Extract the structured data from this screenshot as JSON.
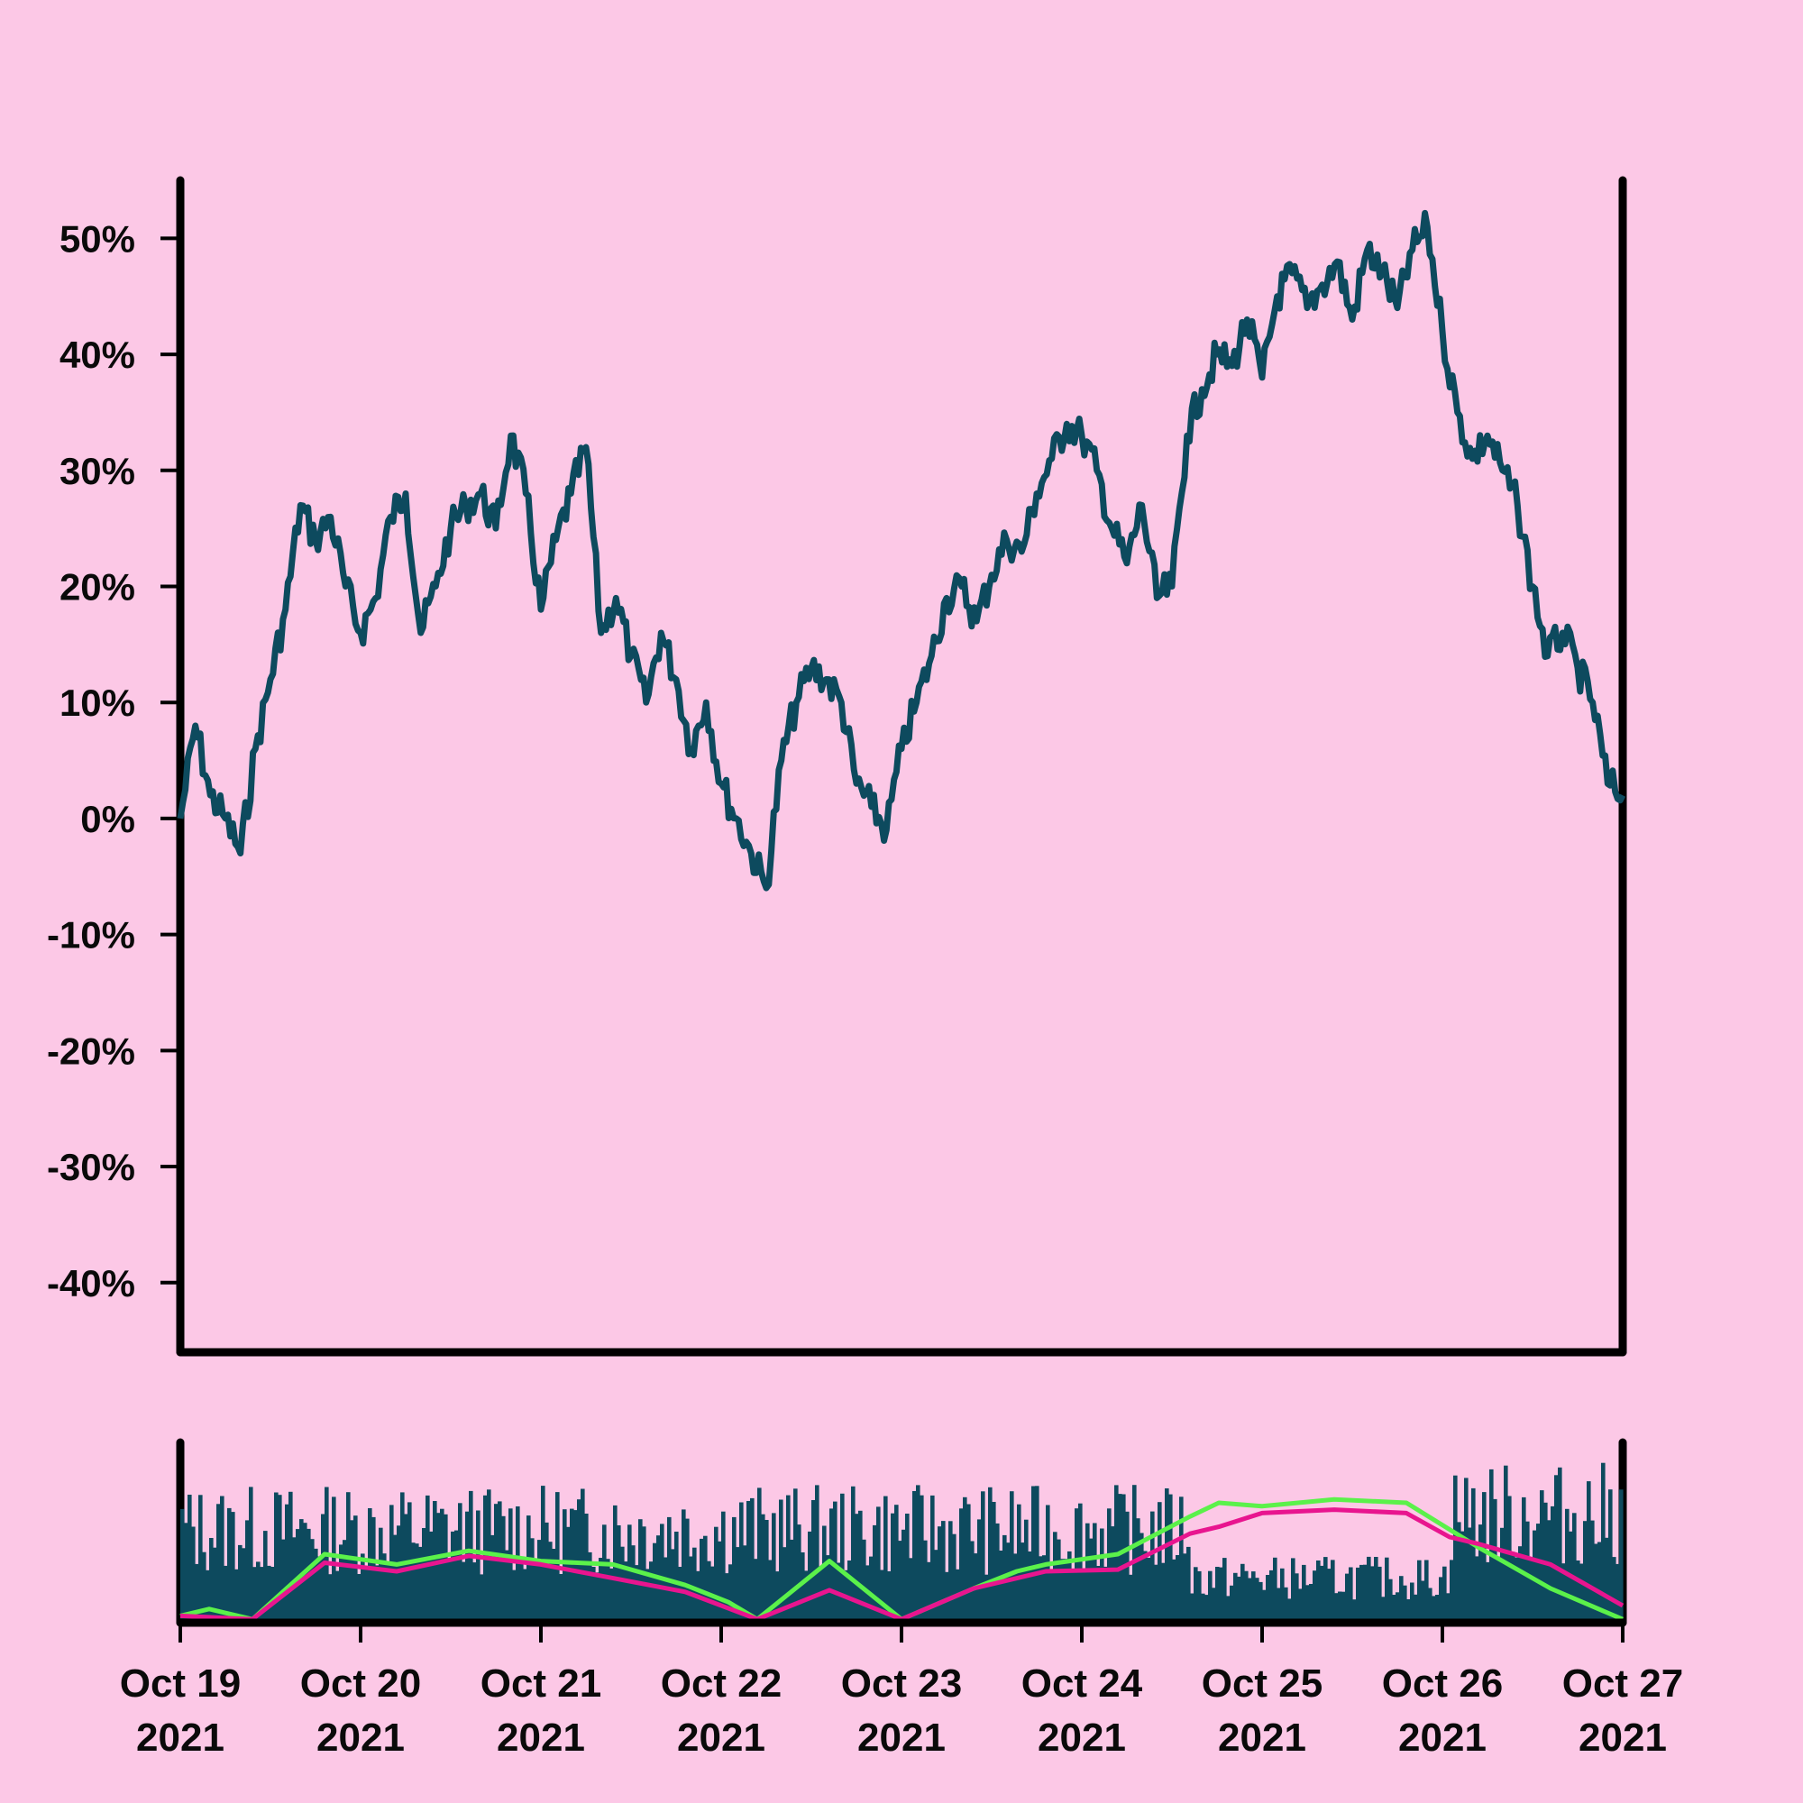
{
  "chart_data": [
    {
      "type": "line",
      "panel": "price",
      "title": "",
      "xlabel": "",
      "ylabel": "",
      "x_range": [
        "2021-10-19",
        "2021-10-27"
      ],
      "ylim": [
        -0.46,
        0.55
      ],
      "y_ticks": [
        -0.4,
        -0.3,
        -0.2,
        -0.1,
        0.0,
        0.1,
        0.2,
        0.3,
        0.4,
        0.5
      ],
      "y_tick_labels": [
        "-40%",
        "-30%",
        "-20%",
        "-10%",
        "0%",
        "10%",
        "20%",
        "30%",
        "40%",
        "50%"
      ],
      "x_tick_labels": [
        {
          "month": "Oct 19",
          "year": "2021"
        },
        {
          "month": "Oct 20",
          "year": "2021"
        },
        {
          "month": "Oct 21",
          "year": "2021"
        },
        {
          "month": "Oct 22",
          "year": "2021"
        },
        {
          "month": "Oct 23",
          "year": "2021"
        },
        {
          "month": "Oct 24",
          "year": "2021"
        },
        {
          "month": "Oct 25",
          "year": "2021"
        },
        {
          "month": "Oct 26",
          "year": "2021"
        },
        {
          "month": "Oct 27",
          "year": "2021"
        }
      ],
      "grid": false,
      "legend": "none",
      "line_color": "#0d4a5e",
      "series": [
        {
          "x": [
            "2021-10-19 00:00",
            "2021-10-19 02:00",
            "2021-10-19 04:00",
            "2021-10-19 06:00",
            "2021-10-19 08:00",
            "2021-10-19 10:00",
            "2021-10-19 12:00",
            "2021-10-19 14:00",
            "2021-10-19 16:00",
            "2021-10-19 18:00",
            "2021-10-19 20:00",
            "2021-10-19 22:00",
            "2021-10-20 00:00",
            "2021-10-20 02:00",
            "2021-10-20 04:00",
            "2021-10-20 06:00",
            "2021-10-20 08:00",
            "2021-10-20 10:00",
            "2021-10-20 12:00",
            "2021-10-20 14:00",
            "2021-10-20 16:00",
            "2021-10-20 18:00",
            "2021-10-20 20:00",
            "2021-10-20 22:00",
            "2021-10-21 00:00",
            "2021-10-21 02:00",
            "2021-10-21 04:00",
            "2021-10-21 06:00",
            "2021-10-21 08:00",
            "2021-10-21 10:00",
            "2021-10-21 12:00",
            "2021-10-21 14:00",
            "2021-10-21 16:00",
            "2021-10-21 18:00",
            "2021-10-21 20:00",
            "2021-10-21 22:00",
            "2021-10-22 00:00",
            "2021-10-22 02:00",
            "2021-10-22 04:00",
            "2021-10-22 06:00",
            "2021-10-22 08:00",
            "2021-10-22 10:00",
            "2021-10-22 12:00",
            "2021-10-22 14:00",
            "2021-10-22 16:00",
            "2021-10-22 18:00",
            "2021-10-22 20:00",
            "2021-10-22 22:00",
            "2021-10-23 00:00",
            "2021-10-23 02:00",
            "2021-10-23 04:00",
            "2021-10-23 06:00",
            "2021-10-23 08:00",
            "2021-10-23 10:00",
            "2021-10-23 12:00",
            "2021-10-23 14:00",
            "2021-10-23 16:00",
            "2021-10-23 18:00",
            "2021-10-23 20:00",
            "2021-10-23 22:00",
            "2021-10-24 00:00",
            "2021-10-24 02:00",
            "2021-10-24 04:00",
            "2021-10-24 06:00",
            "2021-10-24 08:00",
            "2021-10-24 10:00",
            "2021-10-24 12:00",
            "2021-10-24 14:00",
            "2021-10-24 16:00",
            "2021-10-24 18:00",
            "2021-10-24 20:00",
            "2021-10-24 22:00",
            "2021-10-25 00:00",
            "2021-10-25 02:00",
            "2021-10-25 04:00",
            "2021-10-25 06:00",
            "2021-10-25 08:00",
            "2021-10-25 10:00",
            "2021-10-25 12:00",
            "2021-10-25 14:00",
            "2021-10-25 16:00",
            "2021-10-25 18:00",
            "2021-10-25 20:00",
            "2021-10-25 22:00",
            "2021-10-26 00:00",
            "2021-10-26 02:00",
            "2021-10-26 04:00",
            "2021-10-26 06:00",
            "2021-10-26 08:00",
            "2021-10-26 10:00",
            "2021-10-26 12:00",
            "2021-10-26 14:00",
            "2021-10-26 16:00",
            "2021-10-26 18:00",
            "2021-10-26 20:00",
            "2021-10-26 22:00",
            "2021-10-27 00:00"
          ],
          "values": [
            0.0,
            0.08,
            0.02,
            0.0,
            -0.03,
            0.06,
            0.12,
            0.18,
            0.27,
            0.24,
            0.26,
            0.2,
            0.16,
            0.19,
            0.26,
            0.28,
            0.16,
            0.2,
            0.25,
            0.27,
            0.28,
            0.25,
            0.33,
            0.28,
            0.18,
            0.24,
            0.28,
            0.32,
            0.16,
            0.19,
            0.14,
            0.1,
            0.16,
            0.12,
            0.06,
            0.1,
            0.03,
            0.0,
            -0.03,
            -0.06,
            0.05,
            0.1,
            0.13,
            0.12,
            0.1,
            0.03,
            0.01,
            -0.01,
            0.06,
            0.1,
            0.14,
            0.19,
            0.2,
            0.17,
            0.21,
            0.24,
            0.23,
            0.28,
            0.31,
            0.34,
            0.33,
            0.3,
            0.25,
            0.22,
            0.27,
            0.19,
            0.2,
            0.33,
            0.37,
            0.4,
            0.39,
            0.43,
            0.38,
            0.45,
            0.47,
            0.44,
            0.46,
            0.48,
            0.43,
            0.49,
            0.47,
            0.44,
            0.49,
            0.51,
            0.42,
            0.35,
            0.31,
            0.33,
            0.3,
            0.27,
            0.2,
            0.14,
            0.16,
            0.13,
            0.1,
            0.03,
            0.02
          ]
        }
      ]
    },
    {
      "type": "bar",
      "panel": "volume",
      "title": "",
      "bar_color": "#0d4a5e",
      "x_range": [
        "2021-10-19",
        "2021-10-27"
      ],
      "ylim": [
        0,
        1
      ],
      "volume_levels": [
        0.62,
        0.3,
        0.72
      ],
      "series": [
        {
          "name": "",
          "type": "line",
          "color": "#5bf14a",
          "x": [
            0,
            0.02,
            0.05,
            0.1,
            0.15,
            0.2,
            0.25,
            0.3,
            0.35,
            0.38,
            0.4,
            0.45,
            0.5,
            0.55,
            0.58,
            0.6,
            0.65,
            0.7,
            0.72,
            0.75,
            0.8,
            0.85,
            0.9,
            0.95,
            1.0
          ],
          "values": [
            0.04,
            0.08,
            0.02,
            0.4,
            0.34,
            0.42,
            0.36,
            0.34,
            0.22,
            0.12,
            0.02,
            0.36,
            0.02,
            0.2,
            0.3,
            0.34,
            0.4,
            0.62,
            0.7,
            0.68,
            0.72,
            0.7,
            0.44,
            0.2,
            0.02
          ]
        },
        {
          "name": "",
          "type": "line",
          "color": "#e8158f",
          "x": [
            0,
            0.05,
            0.1,
            0.15,
            0.2,
            0.25,
            0.3,
            0.35,
            0.4,
            0.45,
            0.5,
            0.55,
            0.6,
            0.65,
            0.7,
            0.72,
            0.75,
            0.8,
            0.85,
            0.88,
            0.9,
            0.95,
            1.0
          ],
          "values": [
            0.04,
            0.02,
            0.35,
            0.3,
            0.39,
            0.34,
            0.26,
            0.18,
            0.02,
            0.19,
            0.02,
            0.2,
            0.3,
            0.31,
            0.52,
            0.56,
            0.64,
            0.66,
            0.64,
            0.5,
            0.46,
            0.34,
            0.1
          ]
        }
      ]
    }
  ]
}
